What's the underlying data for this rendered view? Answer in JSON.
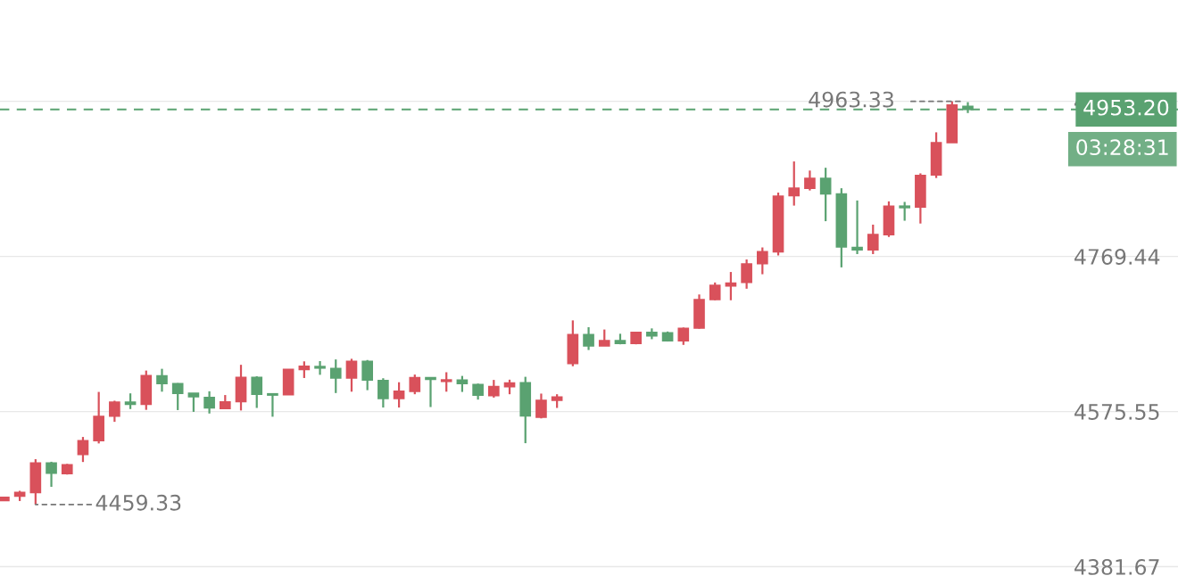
{
  "chart_data": {
    "type": "candlestick",
    "categories": [
      null,
      null,
      null,
      null,
      null,
      null,
      null,
      null,
      null,
      null,
      null,
      null,
      null,
      null,
      null,
      null,
      null,
      null,
      null,
      null,
      null,
      null,
      null,
      null,
      null,
      null,
      null,
      null,
      null,
      null,
      null,
      null,
      null,
      null,
      null,
      null,
      null,
      null,
      null,
      null,
      null,
      null,
      null,
      null,
      null,
      null,
      null,
      null,
      null,
      null,
      null,
      null,
      null,
      null,
      null,
      null,
      null,
      null,
      null,
      null,
      null,
      null
    ],
    "ohlc": [
      [
        4464.4,
        4468.7,
        4464.4,
        4468.4
      ],
      [
        4469.8,
        4476.5,
        4463.7,
        4474.4
      ],
      [
        4474.4,
        4516.0,
        4459.33,
        4511.1
      ],
      [
        4511.1,
        4512.8,
        4481.5,
        4498.6
      ],
      [
        4497.9,
        4510.1,
        4496.8,
        4509.0
      ],
      [
        4522.1,
        4543.8,
        4512.5,
        4539.2
      ],
      [
        4539.2,
        4600.1,
        4535.7,
        4569.5
      ],
      [
        4569.9,
        4589.1,
        4562.7,
        4587.3
      ],
      [
        4587.3,
        4598.3,
        4578.7,
        4584.8
      ],
      [
        4584.8,
        4626.8,
        4577.7,
        4620.4
      ],
      [
        4620.1,
        4629.0,
        4600.4,
        4610.5
      ],
      [
        4610.5,
        4611.1,
        4577.4,
        4598.3
      ],
      [
        4598.3,
        4598.3,
        4575.2,
        4594.0
      ],
      [
        4593.0,
        4600.9,
        4573.1,
        4580.1
      ],
      [
        4579.5,
        4596.2,
        4578.7,
        4587.6
      ],
      [
        4588.0,
        4634.0,
        4576.9,
        4618.3
      ],
      [
        4618.3,
        4619.7,
        4580.1,
        4597.2
      ],
      [
        4597.7,
        4597.7,
        4569.1,
        4596.2
      ],
      [
        4596.6,
        4628.2,
        4596.6,
        4628.2
      ],
      [
        4628.2,
        4638.3,
        4617.5,
        4632.2
      ],
      [
        4631.8,
        4638.6,
        4621.5,
        4630.0
      ],
      [
        4629.3,
        4640.7,
        4598.7,
        4617.5
      ],
      [
        4617.5,
        4641.5,
        4600.4,
        4638.3
      ],
      [
        4638.3,
        4640.0,
        4602.3,
        4615.1
      ],
      [
        4614.3,
        4617.2,
        4580.6,
        4591.9
      ],
      [
        4591.9,
        4612.2,
        4580.6,
        4600.9
      ],
      [
        4600.9,
        4621.8,
        4597.2,
        4618.0
      ],
      [
        4618.0,
        4618.0,
        4581.2,
        4615.8
      ],
      [
        4613.3,
        4624.7,
        4600.4,
        4615.1
      ],
      [
        4614.8,
        4620.1,
        4600.1,
        4610.5
      ],
      [
        4609.4,
        4610.5,
        4590.5,
        4596.2
      ],
      [
        4595.5,
        4615.1,
        4593.0,
        4606.8
      ],
      [
        4606.8,
        4615.4,
        4597.2,
        4611.1
      ],
      [
        4611.5,
        4619.0,
        4536.0,
        4570.2
      ],
      [
        4568.4,
        4598.0,
        4567.0,
        4589.4
      ],
      [
        4589.8,
        4597.2,
        4580.1,
        4593.7
      ],
      [
        4635.7,
        4689.5,
        4632.2,
        4671.7
      ],
      [
        4671.7,
        4681.0,
        4652.5,
        4657.8
      ],
      [
        4657.8,
        4678.1,
        4657.8,
        4664.2
      ],
      [
        4664.2,
        4672.8,
        4659.6,
        4660.7
      ],
      [
        4660.7,
        4675.2,
        4659.6,
        4674.6
      ],
      [
        4674.6,
        4679.5,
        4666.0,
        4670.3
      ],
      [
        4673.8,
        4675.6,
        4663.1,
        4664.2
      ],
      [
        4664.2,
        4680.6,
        4658.9,
        4679.5
      ],
      [
        4679.9,
        4721.9,
        4679.2,
        4715.5
      ],
      [
        4715.5,
        4736.9,
        4714.7,
        4733.3
      ],
      [
        4732.6,
        4750.0,
        4714.7,
        4736.1
      ],
      [
        4737.2,
        4765.7,
        4729.1,
        4760.0
      ],
      [
        4760.4,
        4780.7,
        4747.2,
        4775.3
      ],
      [
        4775.3,
        4849.3,
        4770.7,
        4844.8
      ],
      [
        4845.5,
        4888.2,
        4833.0,
        4854.7
      ],
      [
        4854.7,
        4876.8,
        4851.9,
        4866.9
      ],
      [
        4866.9,
        4880.3,
        4813.5,
        4847.6
      ],
      [
        4847.6,
        4854.7,
        4755.8,
        4781.4
      ],
      [
        4780.7,
        4839.4,
        4772.4,
        4777.8
      ],
      [
        4777.8,
        4809.2,
        4772.4,
        4796.7
      ],
      [
        4796.7,
        4838.3,
        4793.8,
        4832.3
      ],
      [
        4832.3,
        4837.6,
        4814.1,
        4830.5
      ],
      [
        4831.2,
        4873.3,
        4810.6,
        4870.7
      ],
      [
        4871.5,
        4924.6,
        4867.5,
        4911.7
      ],
      [
        4911.7,
        4963.33,
        4911.7,
        4958.7
      ],
      [
        4956.9,
        4962.3,
        4948.7,
        4953.2
      ]
    ],
    "colors": [
      "#d9515b",
      "#d9515b",
      "#d9515b",
      "#5aa271",
      "#d9515b",
      "#d9515b",
      "#d9515b",
      "#d9515b",
      "#5aa271",
      "#d9515b",
      "#5aa271",
      "#5aa271",
      "#5aa271",
      "#5aa271",
      "#d9515b",
      "#d9515b",
      "#5aa271",
      "#5aa271",
      "#d9515b",
      "#d9515b",
      "#5aa271",
      "#5aa271",
      "#d9515b",
      "#5aa271",
      "#5aa271",
      "#d9515b",
      "#d9515b",
      "#5aa271",
      "#d9515b",
      "#5aa271",
      "#5aa271",
      "#d9515b",
      "#d9515b",
      "#5aa271",
      "#d9515b",
      "#d9515b",
      "#d9515b",
      "#5aa271",
      "#d9515b",
      "#5aa271",
      "#d9515b",
      "#5aa271",
      "#5aa271",
      "#d9515b",
      "#d9515b",
      "#d9515b",
      "#d9515b",
      "#d9515b",
      "#d9515b",
      "#d9515b",
      "#d9515b",
      "#d9515b",
      "#5aa271",
      "#5aa271",
      "#5aa271",
      "#d9515b",
      "#d9515b",
      "#5aa271",
      "#d9515b",
      "#d9515b",
      "#d9515b",
      "#5aa271"
    ],
    "ylim": [
      4360,
      5090
    ],
    "yticks": [
      4963.33,
      4769.44,
      4575.55,
      4381.67
    ],
    "grid": "y",
    "ref_lines": [
      {
        "axis": "y",
        "value": 4953.2,
        "label": "4953.20",
        "color": "#5aa271",
        "line_style": "dashed"
      }
    ],
    "annotations": [
      "4963.33",
      "4459.33",
      "03:28:31"
    ]
  }
}
